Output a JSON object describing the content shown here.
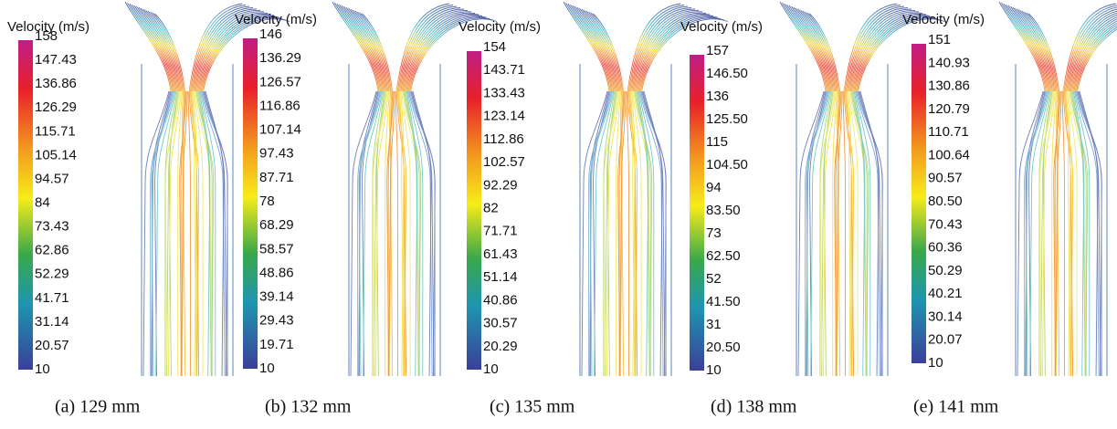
{
  "panels": [
    {
      "legend_title": "Velocity (m/s)",
      "ticks": [
        "158",
        "147.43",
        "136.86",
        "126.29",
        "115.71",
        "105.14",
        "94.57",
        "84",
        "73.43",
        "62.86",
        "52.29",
        "41.71",
        "31.14",
        "20.57",
        "10"
      ],
      "caption": "(a) 129 mm"
    },
    {
      "legend_title": "Velocity (m/s)",
      "ticks": [
        "146",
        "136.29",
        "126.57",
        "116.86",
        "107.14",
        "97.43",
        "87.71",
        "78",
        "68.29",
        "58.57",
        "48.86",
        "39.14",
        "29.43",
        "19.71",
        "10"
      ],
      "caption": "(b) 132 mm"
    },
    {
      "legend_title": "Velocity (m/s)",
      "ticks": [
        "154",
        "143.71",
        "133.43",
        "123.14",
        "112.86",
        "102.57",
        "92.29",
        "82",
        "71.71",
        "61.43",
        "51.14",
        "40.86",
        "30.57",
        "20.29",
        "10"
      ],
      "caption": "(c) 135 mm"
    },
    {
      "legend_title": "Velocity (m/s)",
      "ticks": [
        "157",
        "146.50",
        "136",
        "125.50",
        "115",
        "104.50",
        "94",
        "83.50",
        "73",
        "62.50",
        "52",
        "41.50",
        "31",
        "20.50",
        "10"
      ],
      "caption": "(d) 138 mm"
    },
    {
      "legend_title": "Velocity (m/s)",
      "ticks": [
        "151",
        "140.93",
        "130.86",
        "120.79",
        "110.71",
        "100.64",
        "90.57",
        "80.50",
        "70.43",
        "60.36",
        "50.29",
        "40.21",
        "30.14",
        "20.07",
        "10"
      ],
      "caption": "(e) 141 mm"
    }
  ]
}
